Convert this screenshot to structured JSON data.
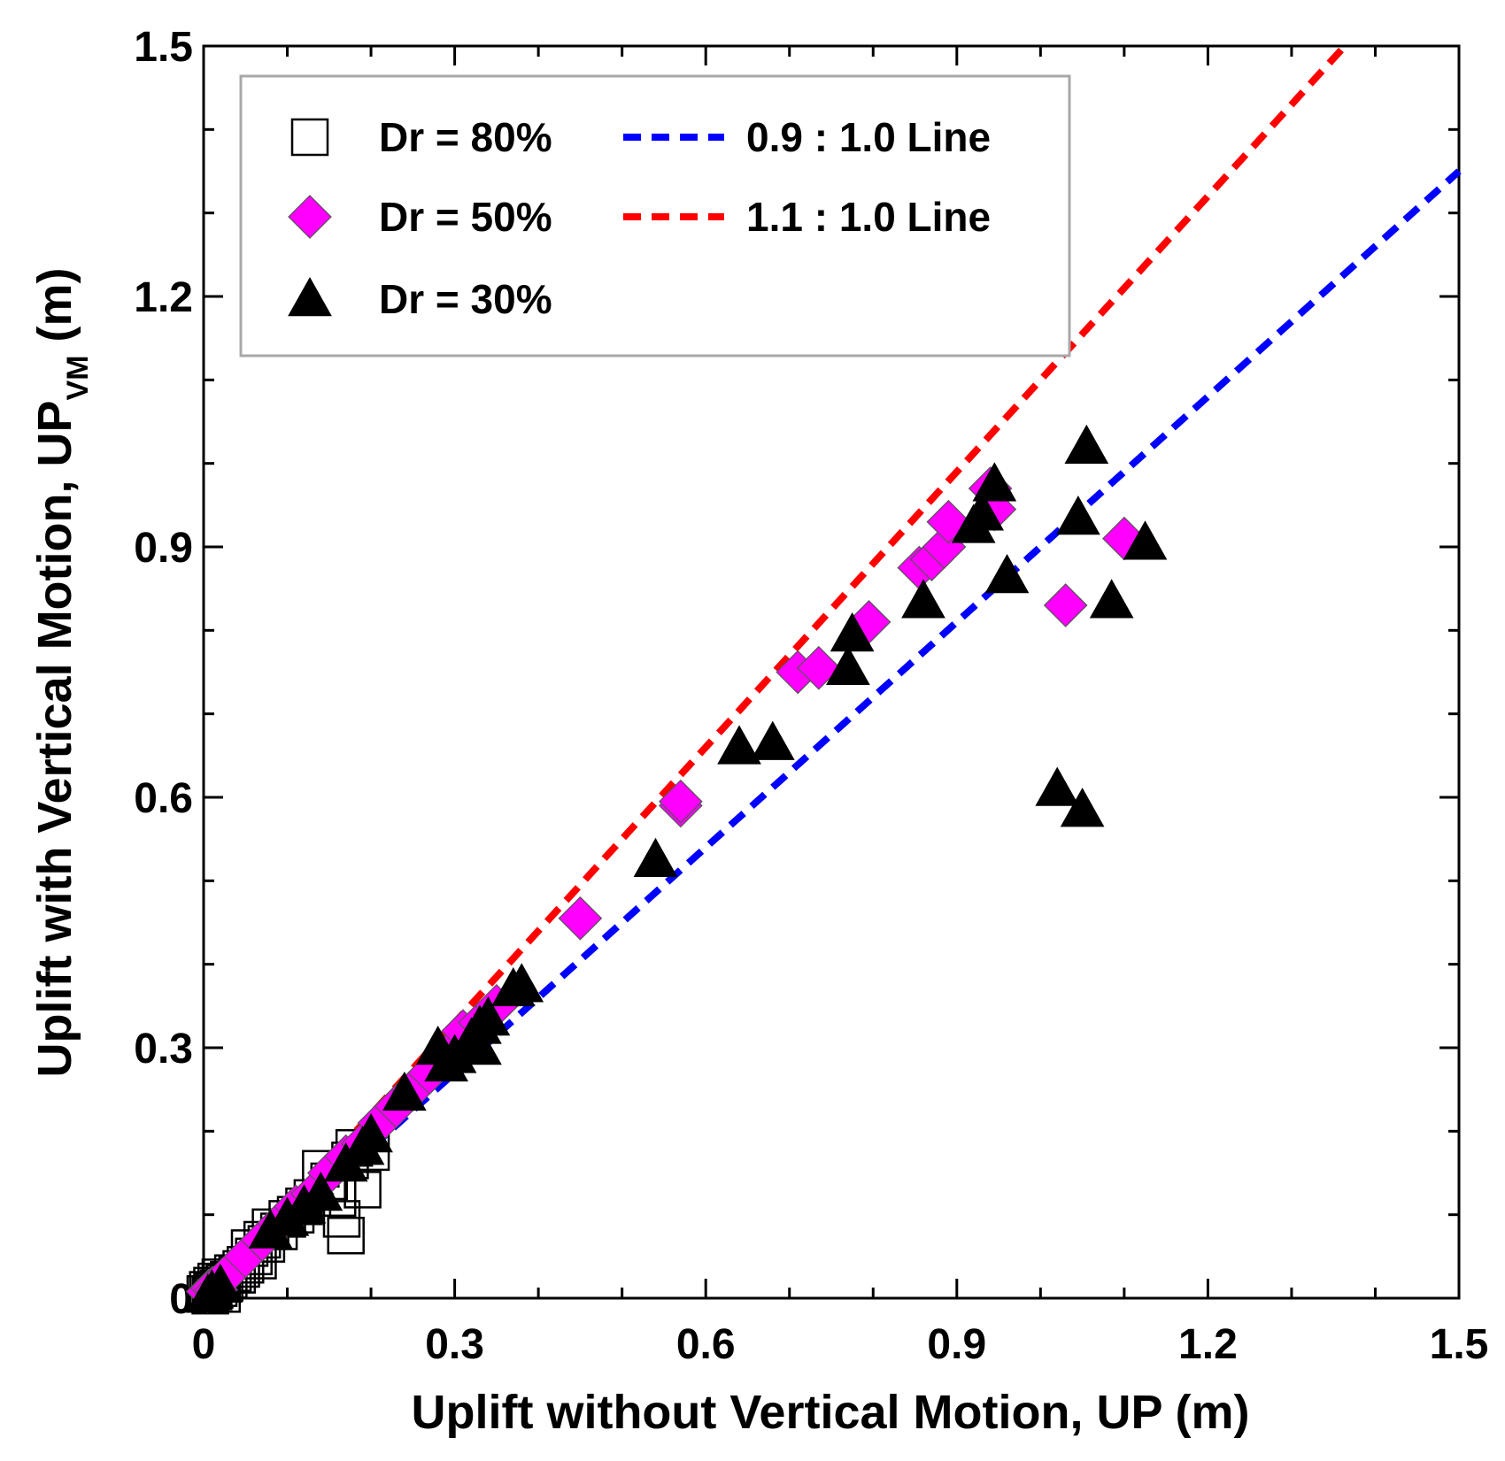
{
  "chart_data": {
    "type": "scatter",
    "title": "",
    "xlabel": "Uplift without Vertical Motion, UP (m)",
    "ylabel": {
      "main": "Uplift with Vertical Motion, UP",
      "subscript": "VM",
      "suffix": " (m)"
    },
    "xlim": [
      0,
      1.5
    ],
    "ylim": [
      0,
      1.5
    ],
    "xticks": [
      0,
      0.3,
      0.6,
      0.9,
      1.2,
      1.5
    ],
    "yticks": [
      0,
      0.3,
      0.6,
      0.9,
      1.2,
      1.5
    ],
    "xtick_labels": [
      "0",
      "0.3",
      "0.6",
      "0.9",
      "1.2",
      "1.5"
    ],
    "ytick_labels": [
      "0",
      "0.3",
      "0.6",
      "0.9",
      "1.2",
      "1.5"
    ],
    "minor_step": 0.1,
    "grid": false,
    "legend_position": "top-left",
    "series": [
      {
        "name": "Dr = 80%",
        "marker": "square-open",
        "color": "#000000",
        "points": [
          [
            0.002,
            0.005
          ],
          [
            0.005,
            0.01
          ],
          [
            0.008,
            0.003
          ],
          [
            0.01,
            0.015
          ],
          [
            0.012,
            0.008
          ],
          [
            0.015,
            0.02
          ],
          [
            0.018,
            0.012
          ],
          [
            0.02,
            0.025
          ],
          [
            0.022,
            0.005
          ],
          [
            0.025,
            0.018
          ],
          [
            0.03,
            0.022
          ],
          [
            0.035,
            0.03
          ],
          [
            0.04,
            0.028
          ],
          [
            0.045,
            0.035
          ],
          [
            0.05,
            0.04
          ],
          [
            0.055,
            0.06
          ],
          [
            0.06,
            0.05
          ],
          [
            0.065,
            0.045
          ],
          [
            0.07,
            0.07
          ],
          [
            0.075,
            0.065
          ],
          [
            0.08,
            0.085
          ],
          [
            0.09,
            0.08
          ],
          [
            0.1,
            0.095
          ],
          [
            0.11,
            0.1
          ],
          [
            0.12,
            0.11
          ],
          [
            0.13,
            0.12
          ],
          [
            0.14,
            0.155
          ],
          [
            0.15,
            0.14
          ],
          [
            0.16,
            0.12
          ],
          [
            0.165,
            0.095
          ],
          [
            0.17,
            0.075
          ],
          [
            0.175,
            0.165
          ],
          [
            0.18,
            0.18
          ],
          [
            0.19,
            0.13
          ],
          [
            0.2,
            0.175
          ]
        ]
      },
      {
        "name": "Dr = 50%",
        "marker": "diamond-filled",
        "color": "#ff00ff",
        "points": [
          [
            0.005,
            0.008
          ],
          [
            0.01,
            0.012
          ],
          [
            0.015,
            0.01
          ],
          [
            0.03,
            0.03
          ],
          [
            0.05,
            0.05
          ],
          [
            0.07,
            0.07
          ],
          [
            0.09,
            0.09
          ],
          [
            0.11,
            0.11
          ],
          [
            0.13,
            0.125
          ],
          [
            0.15,
            0.15
          ],
          [
            0.17,
            0.17
          ],
          [
            0.19,
            0.185
          ],
          [
            0.21,
            0.21
          ],
          [
            0.23,
            0.23
          ],
          [
            0.25,
            0.25
          ],
          [
            0.27,
            0.27
          ],
          [
            0.29,
            0.29
          ],
          [
            0.31,
            0.32
          ],
          [
            0.33,
            0.33
          ],
          [
            0.35,
            0.35
          ],
          [
            0.45,
            0.455
          ],
          [
            0.57,
            0.59
          ],
          [
            0.57,
            0.595
          ],
          [
            0.71,
            0.75
          ],
          [
            0.735,
            0.755
          ],
          [
            0.795,
            0.81
          ],
          [
            0.855,
            0.875
          ],
          [
            0.87,
            0.885
          ],
          [
            0.885,
            0.9
          ],
          [
            0.89,
            0.93
          ],
          [
            0.94,
            0.97
          ],
          [
            0.945,
            0.945
          ],
          [
            1.03,
            0.83
          ],
          [
            1.1,
            0.91
          ]
        ]
      },
      {
        "name": "Dr = 30%",
        "marker": "triangle-filled",
        "color": "#000000",
        "points": [
          [
            0.005,
            0.003
          ],
          [
            0.01,
            0.008
          ],
          [
            0.02,
            0.015
          ],
          [
            0.08,
            0.08
          ],
          [
            0.1,
            0.095
          ],
          [
            0.12,
            0.11
          ],
          [
            0.14,
            0.125
          ],
          [
            0.17,
            0.16
          ],
          [
            0.19,
            0.18
          ],
          [
            0.2,
            0.195
          ],
          [
            0.24,
            0.245
          ],
          [
            0.28,
            0.3
          ],
          [
            0.29,
            0.28
          ],
          [
            0.3,
            0.29
          ],
          [
            0.32,
            0.31
          ],
          [
            0.33,
            0.325
          ],
          [
            0.34,
            0.335
          ],
          [
            0.33,
            0.3
          ],
          [
            0.37,
            0.37
          ],
          [
            0.38,
            0.375
          ],
          [
            0.54,
            0.525
          ],
          [
            0.64,
            0.66
          ],
          [
            0.68,
            0.665
          ],
          [
            0.77,
            0.755
          ],
          [
            0.775,
            0.795
          ],
          [
            0.86,
            0.835
          ],
          [
            0.92,
            0.925
          ],
          [
            0.93,
            0.94
          ],
          [
            0.945,
            0.975
          ],
          [
            0.96,
            0.865
          ],
          [
            1.02,
            0.61
          ],
          [
            1.05,
            0.585
          ],
          [
            1.045,
            0.935
          ],
          [
            1.055,
            1.02
          ],
          [
            1.085,
            0.835
          ],
          [
            1.125,
            0.905
          ]
        ]
      }
    ],
    "lines": [
      {
        "name": "0.9 : 1.0 Line",
        "slope": 0.9,
        "color": "#0000ff",
        "style": "dashed"
      },
      {
        "name": "1.1 : 1.0 Line",
        "slope": 1.1,
        "color": "#ff0000",
        "style": "dashed"
      }
    ]
  }
}
